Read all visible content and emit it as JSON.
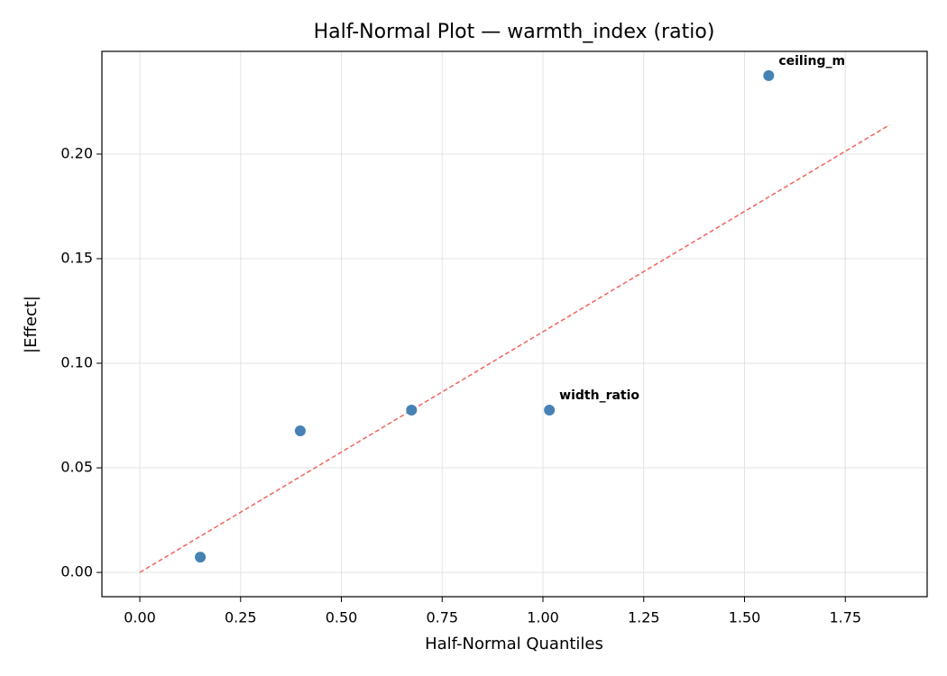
{
  "chart_data": {
    "type": "scatter",
    "title": "Half-Normal Plot — warmth_index (ratio)",
    "x_label": "Half-Normal Quantiles",
    "y_label": "|Effect|",
    "x": [
      0.15,
      0.398,
      0.674,
      1.016,
      1.56
    ],
    "values": [
      0.0073,
      0.0677,
      0.0776,
      0.0776,
      0.2375
    ],
    "color": "#4682b4",
    "reference_line": {
      "x": [
        0,
        1.86
      ],
      "values": [
        0,
        0.214
      ],
      "color": "#f0645c"
    },
    "annotations": [
      {
        "text": "width_ratio",
        "x": 1.016,
        "y": 0.0776,
        "color": "#ff0000"
      },
      {
        "text": "ceiling_m",
        "x": 1.56,
        "y": 0.2375,
        "color": "#ff0000"
      }
    ],
    "xlim": [
      -0.094,
      1.953
    ],
    "ylim": [
      -0.0116,
      0.2491
    ],
    "xticks": [
      {
        "value": 0,
        "label": "0.00"
      },
      {
        "value": 0.25,
        "label": "0.25"
      },
      {
        "value": 0.5,
        "label": "0.50"
      },
      {
        "value": 0.75,
        "label": "0.75"
      },
      {
        "value": 1,
        "label": "1.00"
      },
      {
        "value": 1.25,
        "label": "1.25"
      },
      {
        "value": 1.5,
        "label": "1.50"
      },
      {
        "value": 1.75,
        "label": "1.75"
      }
    ],
    "yticks": [
      {
        "value": 0,
        "label": "0.00"
      },
      {
        "value": 0.05,
        "label": "0.05"
      },
      {
        "value": 0.1,
        "label": "0.10"
      },
      {
        "value": 0.15,
        "label": "0.15"
      },
      {
        "value": 0.2,
        "label": "0.20"
      }
    ],
    "grid": true
  }
}
